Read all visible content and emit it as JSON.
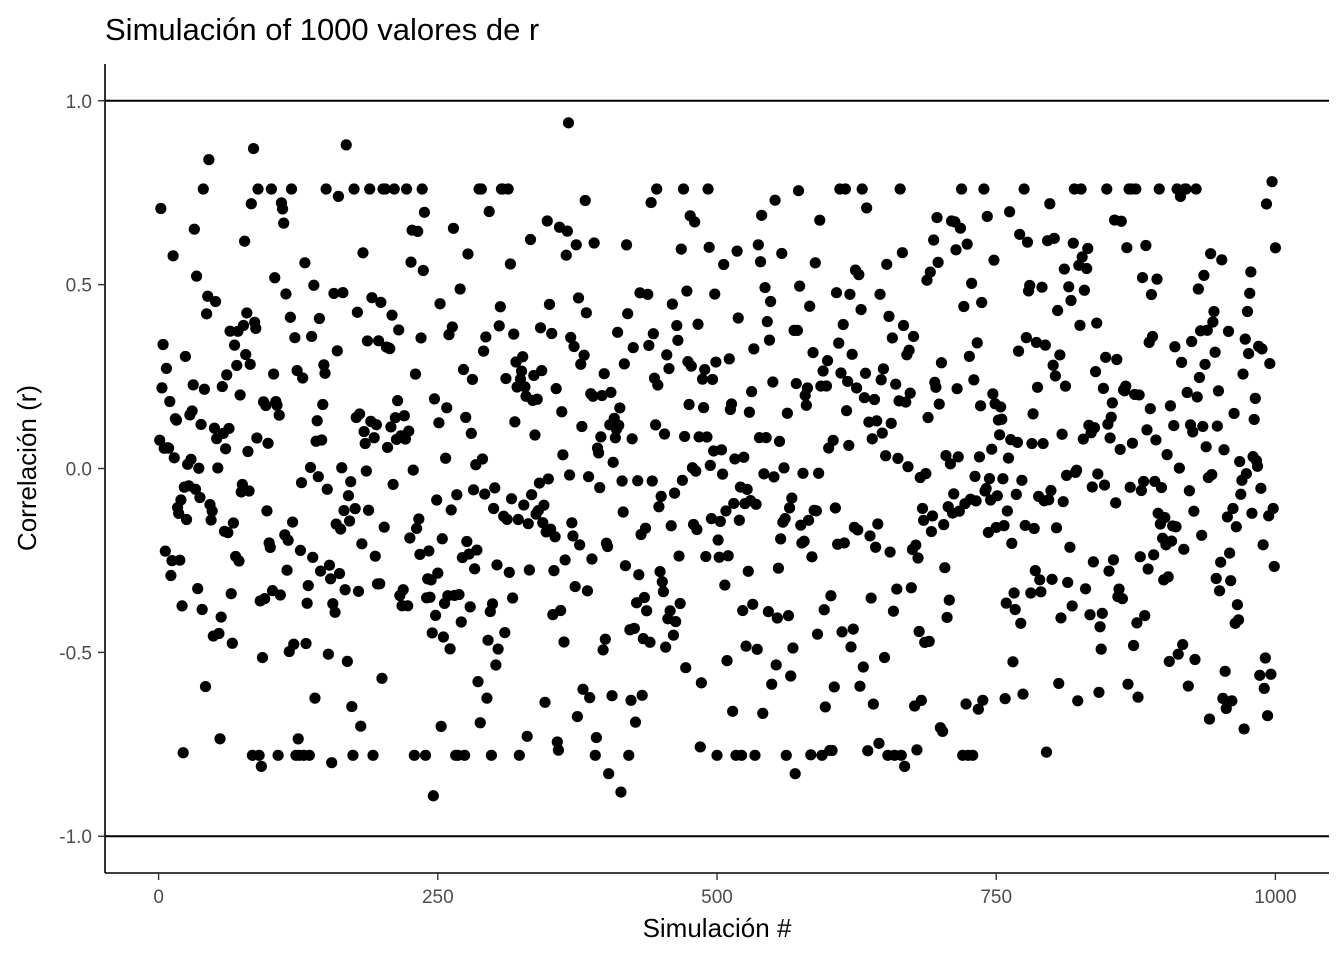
{
  "chart_data": {
    "type": "scatter",
    "title": "Simulación of 1000 valores de r",
    "xlabel": "Simulación #",
    "ylabel": "Correlación (r)",
    "xlim": [
      -48,
      1048
    ],
    "ylim": [
      -1.1,
      1.1
    ],
    "x_ticks": [
      0,
      250,
      500,
      750,
      1000
    ],
    "x_tick_labels": [
      "0",
      "250",
      "500",
      "750",
      "1000"
    ],
    "y_ticks": [
      -1.0,
      -0.5,
      0.0,
      0.5,
      1.0
    ],
    "y_tick_labels": [
      "-1.0",
      "-0.5",
      "0.0",
      "0.5",
      "1.0"
    ],
    "reference_lines_y": [
      -1.0,
      1.0
    ],
    "grid": false,
    "point_color": "#000000",
    "n_points": 1000,
    "noted_extremes": [
      {
        "x": 367,
        "y": 0.94
      },
      {
        "x": 997,
        "y": 0.78
      },
      {
        "x": 168,
        "y": 0.88
      },
      {
        "x": 85,
        "y": 0.87
      },
      {
        "x": 45,
        "y": 0.84
      },
      {
        "x": 246,
        "y": -0.89
      },
      {
        "x": 414,
        "y": -0.88
      },
      {
        "x": 403,
        "y": -0.83
      },
      {
        "x": 570,
        "y": -0.83
      },
      {
        "x": 92,
        "y": -0.81
      },
      {
        "x": 668,
        "y": -0.81
      },
      {
        "x": 155,
        "y": -0.8
      }
    ]
  }
}
